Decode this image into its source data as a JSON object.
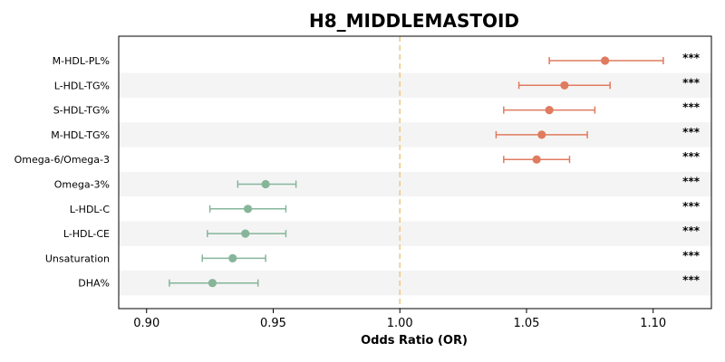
{
  "chart_data": {
    "type": "scatter",
    "subtype": "forest-plot",
    "title": "H8_MIDDLEMASTOID",
    "xlabel": "Odds Ratio (OR)",
    "ylabel": "",
    "xlim": [
      0.889,
      1.123
    ],
    "xticks": [
      "0.90",
      "0.95",
      "1.00",
      "1.05",
      "1.10"
    ],
    "xtick_values": [
      0.9,
      0.95,
      1.0,
      1.05,
      1.1
    ],
    "reference_line": 1.0,
    "reference_line_color": "#f0c987",
    "colors": {
      "positive": "#e07b5f",
      "negative": "#86b59a",
      "band": "#f4f4f4"
    },
    "categories": [
      "M-HDL-PL%",
      "L-HDL-TG%",
      "S-HDL-TG%",
      "M-HDL-TG%",
      "Omega-6/Omega-3",
      "Omega-3%",
      "L-HDL-C",
      "L-HDL-CE",
      "Unsaturation",
      "DHA%"
    ],
    "or": [
      1.081,
      1.065,
      1.059,
      1.056,
      1.054,
      0.947,
      0.94,
      0.939,
      0.934,
      0.926
    ],
    "ci_low": [
      1.059,
      1.047,
      1.041,
      1.038,
      1.041,
      0.936,
      0.925,
      0.924,
      0.922,
      0.909
    ],
    "ci_high": [
      1.104,
      1.083,
      1.077,
      1.074,
      1.067,
      0.959,
      0.955,
      0.955,
      0.947,
      0.944
    ],
    "significance": [
      "***",
      "***",
      "***",
      "***",
      "***",
      "***",
      "***",
      "***",
      "***",
      "***"
    ]
  }
}
